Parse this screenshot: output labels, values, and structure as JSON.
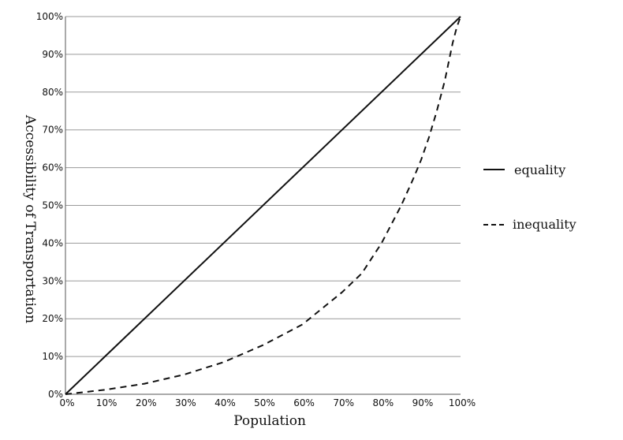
{
  "chart_data": {
    "type": "line",
    "xlabel": "Population",
    "ylabel": "Accessibility of Transportation",
    "xlim": [
      0,
      100
    ],
    "ylim": [
      0,
      100
    ],
    "x_ticks": [
      "0%",
      "10%",
      "20%",
      "30%",
      "40%",
      "50%",
      "60%",
      "70%",
      "80%",
      "90%",
      "100%"
    ],
    "y_ticks": [
      "0%",
      "10%",
      "20%",
      "30%",
      "40%",
      "50%",
      "60%",
      "70%",
      "80%",
      "90%",
      "100%"
    ],
    "grid": "horizontal",
    "legend_placement": "right",
    "series": [
      {
        "name": "equality",
        "style": "solid",
        "x": [
          0,
          100
        ],
        "y": [
          0,
          100
        ]
      },
      {
        "name": "inequality",
        "style": "dashed",
        "x": [
          0,
          10,
          20,
          30,
          40,
          50,
          60,
          70,
          75,
          80,
          85,
          88,
          90,
          92,
          94,
          96,
          97,
          98,
          99,
          100
        ],
        "y": [
          0,
          1.2,
          2.8,
          5.2,
          8.5,
          13,
          18.5,
          27,
          32,
          40,
          50,
          57,
          62,
          68,
          75,
          83,
          88,
          93,
          97,
          100
        ]
      }
    ]
  }
}
